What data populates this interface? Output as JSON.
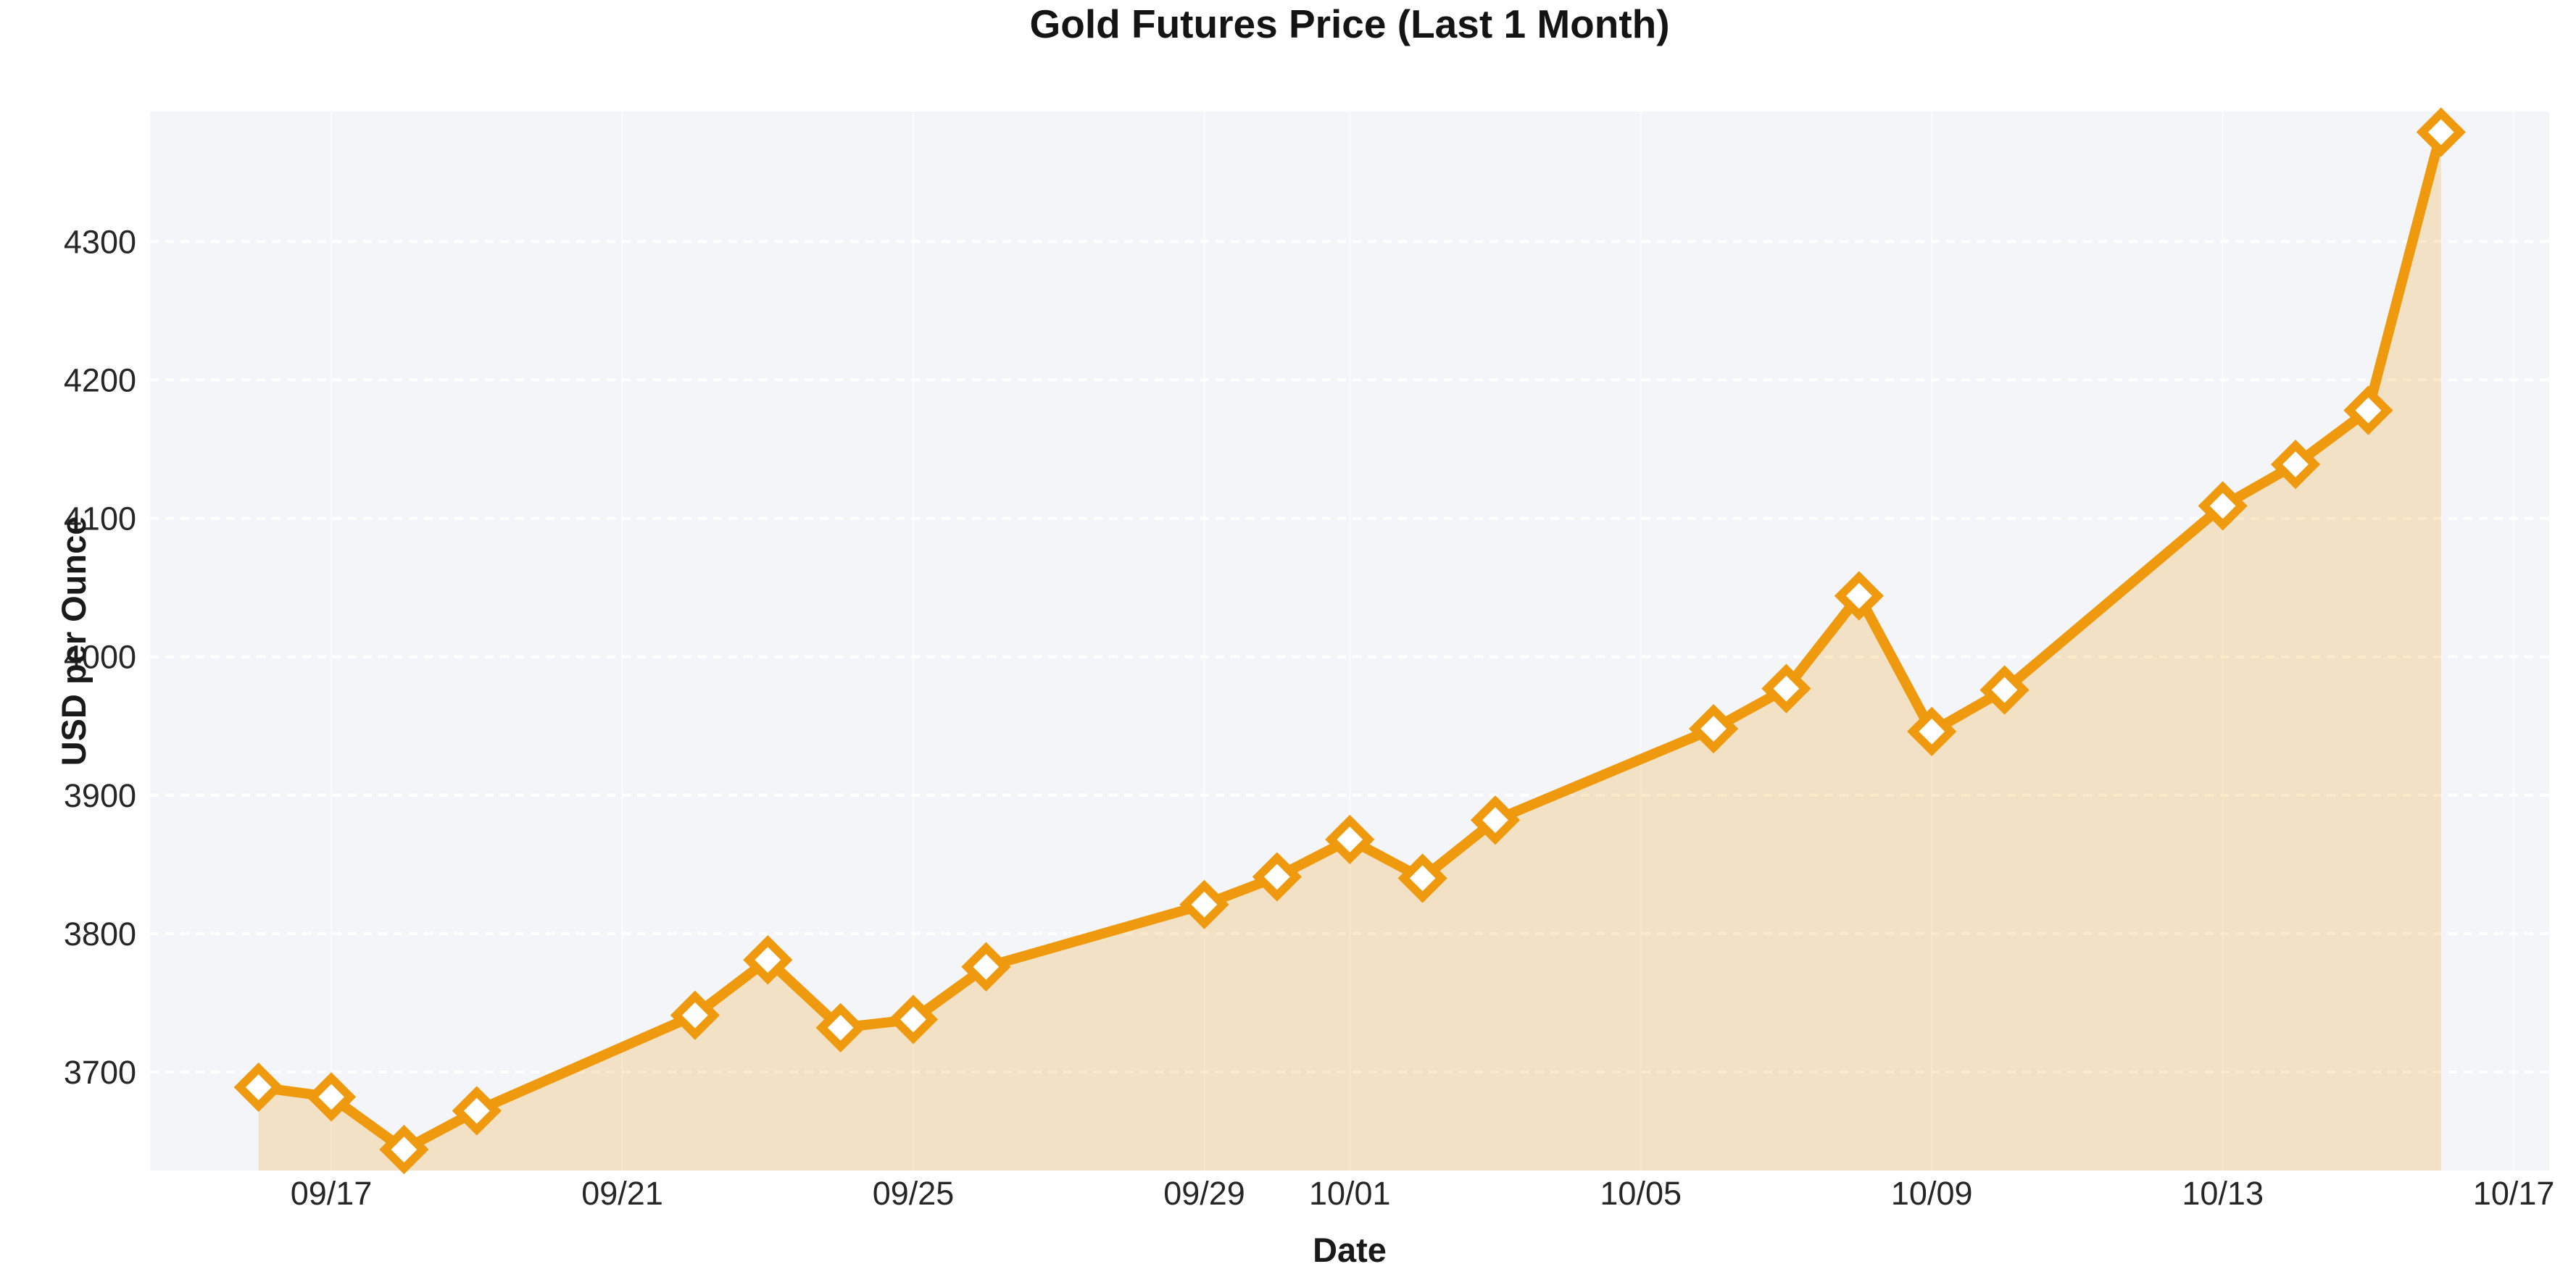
{
  "chart_data": {
    "type": "area",
    "title": "Gold Futures Price (Last 1 Month)",
    "xlabel": "Date",
    "ylabel": "USD per Ounce",
    "legend": "none",
    "grid": "horizontal-dashed-white, faint-vertical-white",
    "ylim": [
      3629,
      4395
    ],
    "y_ticks": [
      3700,
      3800,
      3900,
      4000,
      4100,
      4200,
      4300
    ],
    "x_ticks": [
      {
        "label": "09/17",
        "day": 1
      },
      {
        "label": "09/21",
        "day": 5
      },
      {
        "label": "09/25",
        "day": 9
      },
      {
        "label": "09/29",
        "day": 13
      },
      {
        "label": "10/01",
        "day": 15
      },
      {
        "label": "10/05",
        "day": 19
      },
      {
        "label": "10/09",
        "day": 23
      },
      {
        "label": "10/13",
        "day": 27
      },
      {
        "label": "10/17",
        "day": 31
      }
    ],
    "series": [
      {
        "name": "Gold Futures Price",
        "marker": "diamond-open",
        "points": [
          {
            "date": "09/16",
            "day": 0,
            "value": 3689
          },
          {
            "date": "09/17",
            "day": 1,
            "value": 3682
          },
          {
            "date": "09/18",
            "day": 2,
            "value": 3644
          },
          {
            "date": "09/19",
            "day": 3,
            "value": 3672
          },
          {
            "date": "09/22",
            "day": 6,
            "value": 3741
          },
          {
            "date": "09/23",
            "day": 7,
            "value": 3781
          },
          {
            "date": "09/24",
            "day": 8,
            "value": 3732
          },
          {
            "date": "09/25",
            "day": 9,
            "value": 3738
          },
          {
            "date": "09/26",
            "day": 10,
            "value": 3776
          },
          {
            "date": "09/29",
            "day": 13,
            "value": 3821
          },
          {
            "date": "09/30",
            "day": 14,
            "value": 3841
          },
          {
            "date": "10/01",
            "day": 15,
            "value": 3868
          },
          {
            "date": "10/02",
            "day": 16,
            "value": 3840
          },
          {
            "date": "10/03",
            "day": 17,
            "value": 3882
          },
          {
            "date": "10/06",
            "day": 20,
            "value": 3948
          },
          {
            "date": "10/07",
            "day": 21,
            "value": 3977
          },
          {
            "date": "10/08",
            "day": 22,
            "value": 4044
          },
          {
            "date": "10/09",
            "day": 23,
            "value": 3946
          },
          {
            "date": "10/10",
            "day": 24,
            "value": 3976
          },
          {
            "date": "10/13",
            "day": 27,
            "value": 4109
          },
          {
            "date": "10/14",
            "day": 28,
            "value": 4139
          },
          {
            "date": "10/15",
            "day": 29,
            "value": 4178
          },
          {
            "date": "10/16",
            "day": 30,
            "value": 4379
          }
        ]
      }
    ],
    "colors": {
      "line": "#EF9A0E",
      "area_fill": "rgba(240, 154, 14, 0.22)",
      "marker_fill": "#FFFFFF",
      "plot_background": "#F3F5F8",
      "gridline": "#FFFFFF",
      "title_text": "#141414",
      "axis_label_text": "#1A1A1A",
      "tick_text": "#262626",
      "page_background": "#FFFFFF"
    }
  }
}
